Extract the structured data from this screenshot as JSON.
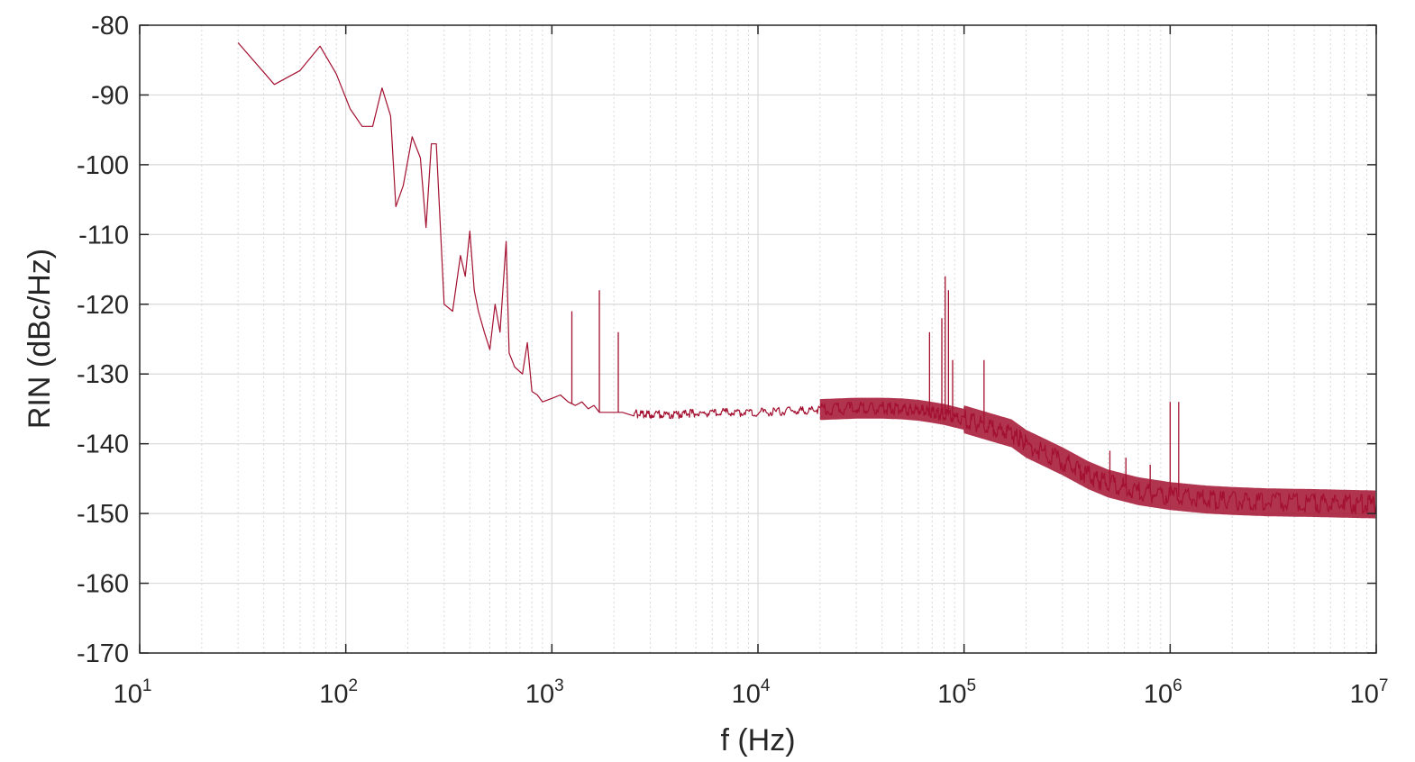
{
  "chart_data": {
    "type": "line",
    "title": "",
    "xlabel": "f (Hz)",
    "ylabel": "RIN (dBc/Hz)",
    "xscale": "log",
    "xlim": [
      10,
      10000000
    ],
    "ylim": [
      -170,
      -80
    ],
    "grid": true,
    "x_ticks": [
      {
        "base": "10",
        "exp": "1"
      },
      {
        "base": "10",
        "exp": "2"
      },
      {
        "base": "10",
        "exp": "3"
      },
      {
        "base": "10",
        "exp": "4"
      },
      {
        "base": "10",
        "exp": "5"
      },
      {
        "base": "10",
        "exp": "6"
      },
      {
        "base": "10",
        "exp": "7"
      }
    ],
    "y_ticks": [
      "-80",
      "-90",
      "-100",
      "-110",
      "-120",
      "-130",
      "-140",
      "-150",
      "-160",
      "-170"
    ],
    "colors": {
      "line": "#a31030",
      "grid": "#d9d9d9",
      "axis": "#262626"
    },
    "series": [
      {
        "name": "",
        "x": [
          30,
          45,
          60,
          75,
          90,
          105,
          120,
          135,
          150,
          165,
          175,
          190,
          210,
          230,
          245,
          260,
          275,
          300,
          330,
          360,
          380,
          400,
          420,
          440,
          470,
          500,
          530,
          560,
          600,
          620,
          660,
          720,
          760,
          800,
          850,
          900,
          1000,
          1100,
          1200,
          1300,
          1400,
          1500,
          1600,
          1700,
          1800,
          2000,
          2200,
          2500,
          3000,
          4000,
          5000,
          7000,
          10000,
          15000,
          20000,
          30000,
          40000,
          50000,
          60000,
          70000,
          80000,
          100000,
          130000,
          170000,
          200000,
          300000,
          400000,
          500000,
          700000,
          1000000,
          1500000,
          2000000,
          3000000,
          5000000,
          7000000,
          10000000
        ],
        "y": [
          -82.5,
          -88.5,
          -86.5,
          -83,
          -87,
          -92,
          -94.5,
          -94.5,
          -89,
          -93,
          -106,
          -103,
          -96,
          -99,
          -109,
          -97,
          -97,
          -120,
          -121,
          -113,
          -116,
          -109.5,
          -118,
          -121,
          -124,
          -126.5,
          -120,
          -124,
          -111,
          -127,
          -129,
          -130,
          -125.5,
          -132.5,
          -133,
          -134,
          -133.5,
          -133,
          -134,
          -134.5,
          -134,
          -135,
          -134.5,
          -135.5,
          -135.5,
          -135.5,
          -135.5,
          -135.7,
          -135.8,
          -135.8,
          -135.6,
          -135.5,
          -135.5,
          -135.3,
          -135.1,
          -134.9,
          -134.9,
          -135.0,
          -135.2,
          -135.5,
          -135.8,
          -136.5,
          -137.5,
          -138.5,
          -140,
          -142.5,
          -144.5,
          -145.7,
          -146.8,
          -147.5,
          -148,
          -148.2,
          -148.4,
          -148.5,
          -148.6,
          -148.7
        ]
      }
    ],
    "spikes": [
      {
        "x": 1250,
        "y": -121
      },
      {
        "x": 1700,
        "y": -118
      },
      {
        "x": 2100,
        "y": -124
      },
      {
        "x": 68000,
        "y": -124
      },
      {
        "x": 78000,
        "y": -122
      },
      {
        "x": 81000,
        "y": -116
      },
      {
        "x": 84000,
        "y": -118
      },
      {
        "x": 88000,
        "y": -128
      },
      {
        "x": 125000,
        "y": -128
      },
      {
        "x": 510000,
        "y": -141
      },
      {
        "x": 610000,
        "y": -142
      },
      {
        "x": 800000,
        "y": -143
      },
      {
        "x": 1000000,
        "y": -134
      },
      {
        "x": 1100000,
        "y": -134
      }
    ]
  }
}
